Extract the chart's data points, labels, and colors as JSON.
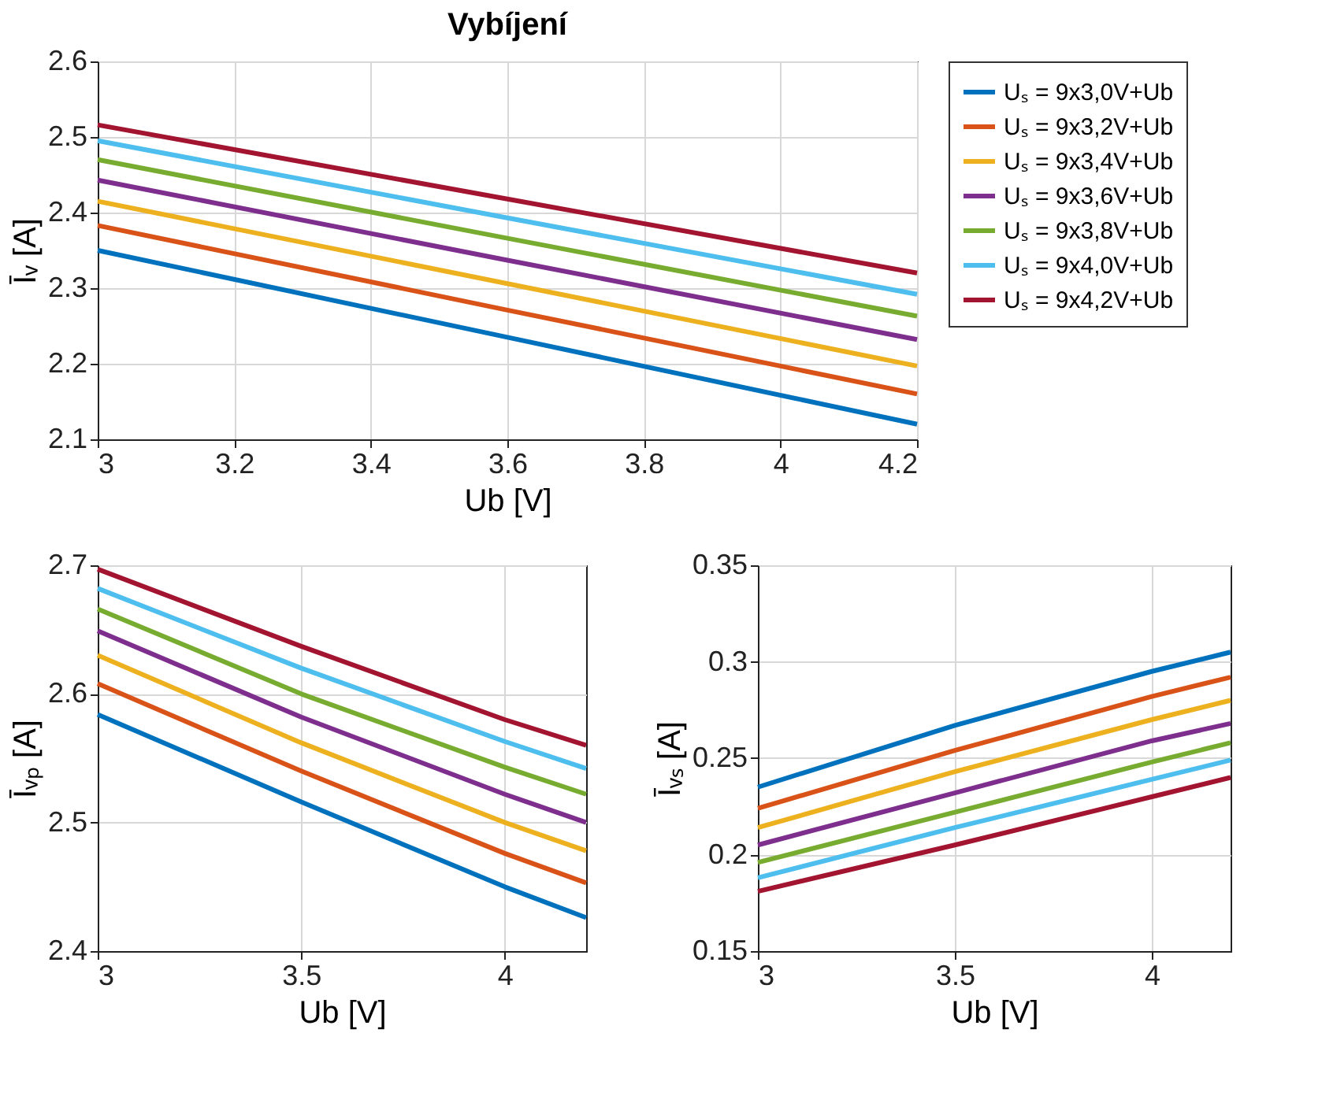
{
  "chart_data": [
    {
      "type": "line",
      "title": "Vybíjení",
      "xlabel": "Ub [V]",
      "ylabel": "Īᵥ [A]",
      "x": [
        3,
        3.6,
        4.2
      ],
      "xlim": [
        3,
        4.2
      ],
      "xticks": [
        3,
        3.2,
        3.4,
        3.6,
        3.8,
        4,
        4.2
      ],
      "ylim": [
        2.1,
        2.6
      ],
      "yticks": [
        2.1,
        2.2,
        2.3,
        2.4,
        2.5,
        2.6
      ],
      "grid": true,
      "legend": "right",
      "marker": "none",
      "line_style": "solid",
      "series": [
        {
          "name": "Uₛ = 9x3,0V+Ub",
          "color": "#0072bd",
          "values": [
            2.35,
            2.235,
            2.12
          ]
        },
        {
          "name": "Uₛ = 9x3,2V+Ub",
          "color": "#d95319",
          "values": [
            2.383,
            2.271,
            2.16
          ]
        },
        {
          "name": "Uₛ = 9x3,4V+Ub",
          "color": "#edb120",
          "values": [
            2.415,
            2.306,
            2.197
          ]
        },
        {
          "name": "Uₛ = 9x3,6V+Ub",
          "color": "#7e2f8e",
          "values": [
            2.443,
            2.337,
            2.232
          ]
        },
        {
          "name": "Uₛ = 9x3,8V+Ub",
          "color": "#77ac30",
          "values": [
            2.47,
            2.366,
            2.263
          ]
        },
        {
          "name": "Uₛ = 9x4,0V+Ub",
          "color": "#4dbeee",
          "values": [
            2.495,
            2.393,
            2.292
          ]
        },
        {
          "name": "Uₛ = 9x4,2V+Ub",
          "color": "#a2142f",
          "values": [
            2.516,
            2.418,
            2.32
          ]
        }
      ]
    },
    {
      "type": "line",
      "xlabel": "Ub [V]",
      "ylabel": "Īᵥₚ [A]",
      "x": [
        3,
        3.5,
        4,
        4.2
      ],
      "xlim": [
        3,
        4.2
      ],
      "xticks": [
        3,
        3.5,
        4
      ],
      "ylim": [
        2.4,
        2.7
      ],
      "yticks": [
        2.4,
        2.5,
        2.6,
        2.7
      ],
      "grid": true,
      "marker": "none",
      "line_style": "solid",
      "series": [
        {
          "color": "#0072bd",
          "values": [
            2.584,
            2.516,
            2.45,
            2.426
          ]
        },
        {
          "color": "#d95319",
          "values": [
            2.608,
            2.54,
            2.476,
            2.453
          ]
        },
        {
          "color": "#edb120",
          "values": [
            2.63,
            2.562,
            2.5,
            2.478
          ]
        },
        {
          "color": "#7e2f8e",
          "values": [
            2.649,
            2.582,
            2.522,
            2.5
          ]
        },
        {
          "color": "#77ac30",
          "values": [
            2.666,
            2.6,
            2.543,
            2.522
          ]
        },
        {
          "color": "#4dbeee",
          "values": [
            2.682,
            2.62,
            2.563,
            2.542
          ]
        },
        {
          "color": "#a2142f",
          "values": [
            2.697,
            2.637,
            2.58,
            2.56
          ]
        }
      ]
    },
    {
      "type": "line",
      "xlabel": "Ub [V]",
      "ylabel": "Īᵥₛ [A]",
      "x": [
        3,
        3.5,
        4,
        4.2
      ],
      "xlim": [
        3,
        4.2
      ],
      "xticks": [
        3,
        3.5,
        4
      ],
      "ylim": [
        0.15,
        0.35
      ],
      "yticks": [
        0.15,
        0.2,
        0.25,
        0.3,
        0.35
      ],
      "grid": true,
      "marker": "none",
      "line_style": "solid",
      "series": [
        {
          "color": "#0072bd",
          "values": [
            0.235,
            0.267,
            0.295,
            0.305
          ]
        },
        {
          "color": "#d95319",
          "values": [
            0.224,
            0.254,
            0.282,
            0.292
          ]
        },
        {
          "color": "#edb120",
          "values": [
            0.214,
            0.243,
            0.27,
            0.28
          ]
        },
        {
          "color": "#7e2f8e",
          "values": [
            0.205,
            0.232,
            0.259,
            0.268
          ]
        },
        {
          "color": "#77ac30",
          "values": [
            0.196,
            0.222,
            0.248,
            0.258
          ]
        },
        {
          "color": "#4dbeee",
          "values": [
            0.188,
            0.214,
            0.239,
            0.249
          ]
        },
        {
          "color": "#a2142f",
          "values": [
            0.181,
            0.205,
            0.23,
            0.24
          ]
        }
      ]
    }
  ]
}
